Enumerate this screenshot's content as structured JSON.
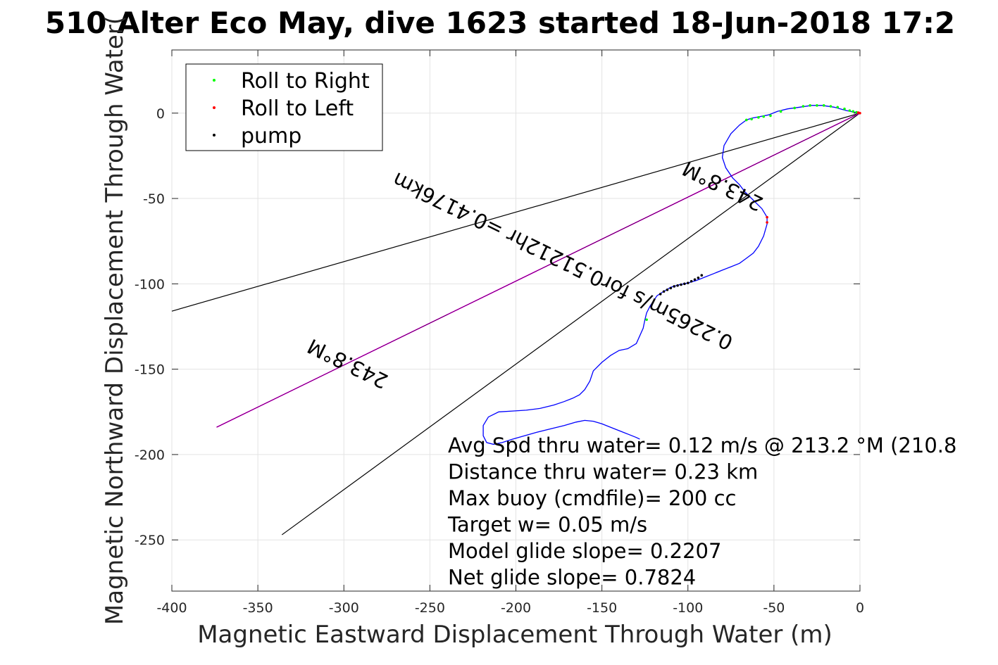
{
  "chart_data": {
    "type": "line",
    "title": "510 Alter Eco May, dive 1623 started 18-Jun-2018 17:2",
    "xlabel": "Magnetic Eastward Displacement Through Water (m)",
    "ylabel": "Magnetic Northward Displacement Through Water(",
    "xlim": [
      -400,
      0
    ],
    "ylim": [
      -280,
      37
    ],
    "xticks": [
      -400,
      -350,
      -300,
      -250,
      -200,
      -150,
      -100,
      -50,
      0
    ],
    "yticks": [
      0,
      -50,
      -100,
      -150,
      -200,
      -250
    ],
    "grid": true,
    "legend_position": "top-left",
    "legend": [
      {
        "label": "Roll to Right",
        "color": "#00ff00"
      },
      {
        "label": "Roll to Left",
        "color": "#ff0000"
      },
      {
        "label": "pump",
        "color": "#000000"
      }
    ],
    "track": {
      "color": "#0000ff",
      "x": [
        0,
        -8,
        -15,
        -22,
        -28,
        -35,
        -42,
        -48,
        -53,
        -58,
        -63,
        -66,
        -70,
        -75,
        -79,
        -80,
        -78,
        -74,
        -70,
        -67,
        -62,
        -57,
        -54,
        -54,
        -56,
        -59,
        -62,
        -66,
        -70,
        -75,
        -80,
        -85,
        -90,
        -95,
        -100,
        -105,
        -110,
        -115,
        -118,
        -120,
        -122,
        -124,
        -125,
        -126,
        -130,
        -135,
        -140,
        -145,
        -150,
        -155,
        -157,
        -160,
        -163,
        -167,
        -172,
        -178,
        -186,
        -194,
        -202,
        -210,
        -216,
        -219,
        -219,
        -217,
        -213,
        -208,
        -202,
        -195,
        -188,
        -180,
        -172,
        -165,
        -160,
        -155,
        -150,
        -145,
        -140,
        -135,
        -130,
        -128
      ],
      "y": [
        0,
        1.5,
        3.5,
        4.5,
        4.5,
        3.5,
        2.5,
        1,
        -1,
        -2,
        -3,
        -4,
        -7,
        -12,
        -19,
        -26,
        -32,
        -38,
        -42,
        -46,
        -51,
        -56,
        -61,
        -65,
        -72,
        -78,
        -82,
        -85,
        -88,
        -90,
        -92,
        -94,
        -96,
        -98,
        -99.5,
        -100.5,
        -102,
        -105,
        -107,
        -110,
        -113,
        -117,
        -121,
        -126,
        -135,
        -138,
        -139,
        -142,
        -146,
        -151,
        -157,
        -162,
        -165,
        -167,
        -169,
        -171,
        -173,
        -174,
        -174.5,
        -175,
        -178,
        -183,
        -189,
        -193,
        -194,
        -193,
        -191,
        -189,
        -187,
        -185,
        -183,
        -181,
        -180,
        -180.5,
        -182,
        -184,
        -186,
        -188,
        -190,
        -191
      ]
    },
    "roll_right": {
      "x": [
        -2,
        -4,
        -6,
        -9,
        -13,
        -17,
        -21,
        -25,
        -29,
        -33,
        -38,
        -46,
        -52,
        -56,
        -59,
        -63,
        -66,
        -124
      ],
      "y": [
        0.5,
        1,
        1.5,
        2.5,
        3.5,
        4,
        4.5,
        4.5,
        4.5,
        4,
        3,
        1,
        -1.5,
        -2,
        -2.5,
        -3.5,
        -4,
        -121
      ]
    },
    "roll_left": {
      "x": [
        0,
        -1,
        -54,
        -54
      ],
      "y": [
        0,
        0.3,
        -61,
        -64
      ]
    },
    "pump": {
      "x": [
        -92,
        -94,
        -96,
        -98,
        -100,
        -102,
        -104,
        -106,
        -108,
        -110,
        -112,
        -114,
        -116
      ],
      "y": [
        -95,
        -96.5,
        -97.5,
        -98.5,
        -99.5,
        -100,
        -100.5,
        -101,
        -101.5,
        -102.5,
        -103.5,
        -104.5,
        -106
      ]
    },
    "course_line": {
      "color": "#ff00ff",
      "x": [
        0,
        -374
      ],
      "y": [
        0,
        -184
      ]
    },
    "black_lines": [
      {
        "x": [
          0,
          -400
        ],
        "y": [
          0,
          -116
        ]
      },
      {
        "x": [
          0,
          -336
        ],
        "y": [
          0,
          -247
        ]
      }
    ],
    "heading_labels": [
      {
        "text": "243.8°M",
        "x": -78,
        "y": -39,
        "angle_deg": 206.2
      },
      {
        "text": "243.8°M",
        "x": -296,
        "y": -143,
        "angle_deg": 206.2
      },
      {
        "text": "0.2265m/s for0.51212hr =0.4176km",
        "x": -171,
        "y": -83,
        "angle_deg": 206.2
      }
    ],
    "annotations": [
      "Avg Spd thru water=  0.12 m/s @ 213.2 °M (210.8",
      "Distance thru water=  0.23 km",
      "Max buoy (cmdfile)= 200 cc",
      "Target w= 0.05 m/s",
      "Model glide slope= 0.2207",
      "Net glide slope= 0.7824"
    ]
  }
}
